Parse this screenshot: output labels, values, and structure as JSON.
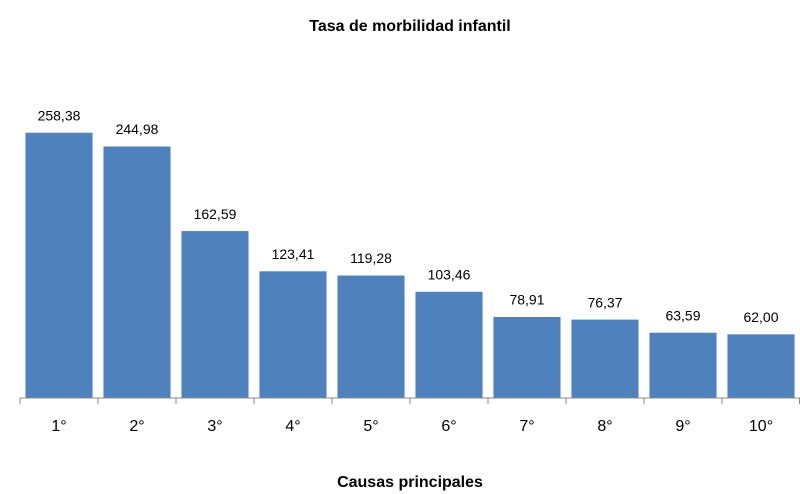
{
  "chart_data": {
    "type": "bar",
    "title": "Tasa de morbilidad infantil",
    "xlabel": "Causas principales",
    "categories": [
      "1°",
      "2°",
      "3°",
      "4°",
      "5°",
      "6°",
      "7°",
      "8°",
      "9°",
      "10°"
    ],
    "values": [
      258.38,
      244.98,
      162.59,
      123.41,
      119.28,
      103.46,
      78.91,
      76.37,
      63.59,
      62.0
    ],
    "value_labels": [
      "258,38",
      "244,98",
      "162,59",
      "123,41",
      "119,28",
      "103,46",
      "78,91",
      "76,37",
      "63,59",
      "62,00"
    ],
    "color": "#4f81bd",
    "ylim": [
      0,
      300
    ]
  }
}
